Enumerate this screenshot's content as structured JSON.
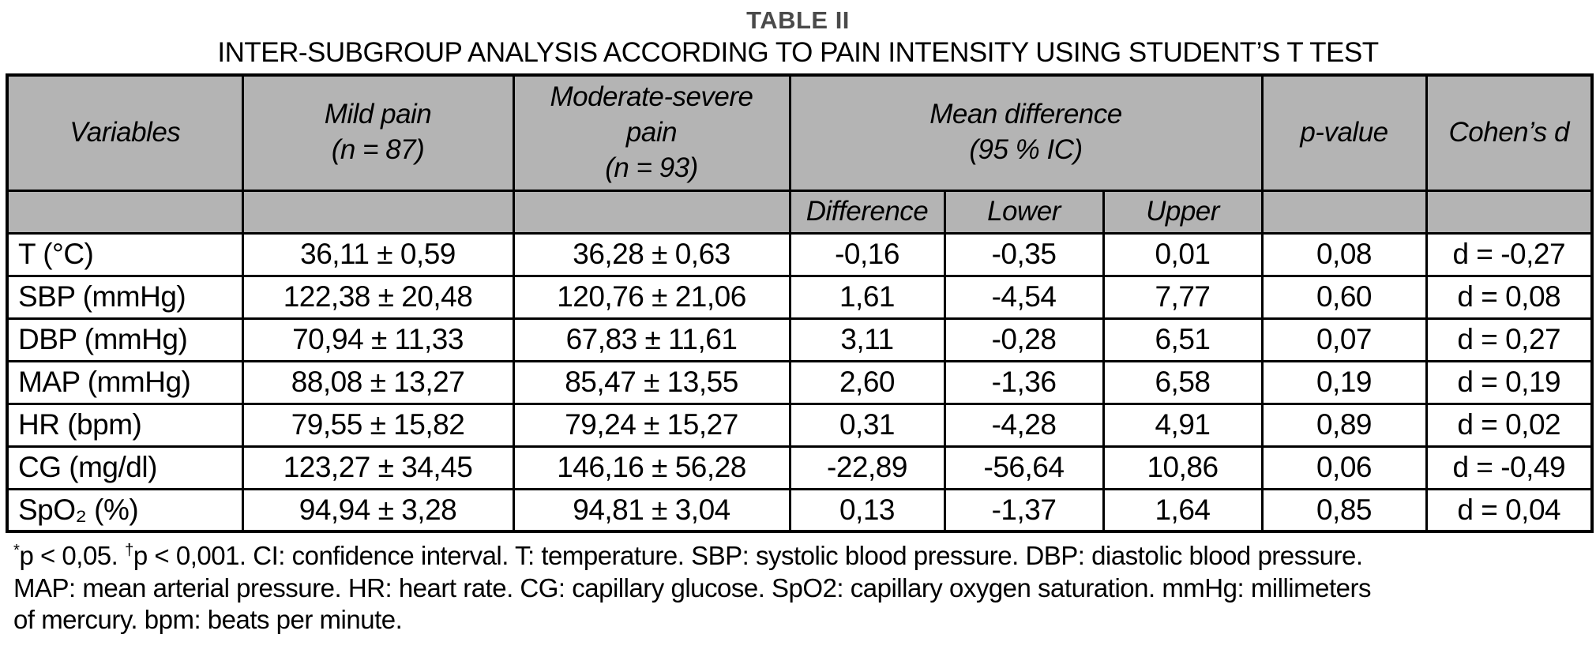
{
  "title": "TABLE II",
  "subtitle": "INTER-SUBGROUP ANALYSIS ACCORDING TO PAIN INTENSITY USING STUDENT’S T TEST",
  "table": {
    "header": {
      "variables": "Variables",
      "mild_pain": "Mild pain\n(n = 87)",
      "moderate_severe_pain": "Moderate-severe\npain\n(n = 93)",
      "mean_difference": "Mean difference\n(95 % IC)",
      "p_value": "p-value",
      "cohens_d": "Cohen’s d",
      "difference": "Difference",
      "lower": "Lower",
      "upper": "Upper"
    },
    "rows": [
      {
        "variable": "T (°C)",
        "mild": "36,11 ± 0,59",
        "moderate": "36,28 ± 0,63",
        "difference": "-0,16",
        "lower": "-0,35",
        "upper": "0,01",
        "p": "0,08",
        "d": "d = -0,27"
      },
      {
        "variable": "SBP (mmHg)",
        "mild": "122,38 ± 20,48",
        "moderate": "120,76 ± 21,06",
        "difference": "1,61",
        "lower": "-4,54",
        "upper": "7,77",
        "p": "0,60",
        "d": "d = 0,08"
      },
      {
        "variable": "DBP (mmHg)",
        "mild": "70,94 ± 11,33",
        "moderate": "67,83 ± 11,61",
        "difference": "3,11",
        "lower": "-0,28",
        "upper": "6,51",
        "p": "0,07",
        "d": "d = 0,27"
      },
      {
        "variable": "MAP (mmHg)",
        "mild": "88,08 ± 13,27",
        "moderate": "85,47 ± 13,55",
        "difference": "2,60",
        "lower": "-1,36",
        "upper": "6,58",
        "p": "0,19",
        "d": "d = 0,19"
      },
      {
        "variable": "HR (bpm)",
        "mild": "79,55 ± 15,82",
        "moderate": "79,24 ± 15,27",
        "difference": "0,31",
        "lower": "-4,28",
        "upper": "4,91",
        "p": "0,89",
        "d": "d = 0,02"
      },
      {
        "variable": "CG (mg/dl)",
        "mild": "123,27 ± 34,45",
        "moderate": "146,16 ± 56,28",
        "difference": "-22,89",
        "lower": "-56,64",
        "upper": "10,86",
        "p": "0,06",
        "d": "d = -0,49"
      },
      {
        "variable": "SpO₂ (%)",
        "mild": "94,94 ± 3,28",
        "moderate": "94,81 ± 3,04",
        "difference": "0,13",
        "lower": "-1,37",
        "upper": "1,64",
        "p": "0,85",
        "d": "d = 0,04"
      }
    ]
  },
  "footnote": {
    "lines": [
      {
        "parts": [
          {
            "sup": "*"
          },
          {
            "text": "p < 0,05. "
          },
          {
            "sup": "†"
          },
          {
            "text": "p < 0,001. CI: confidence interval. T: temperature. SBP: systolic blood pressure. DBP: diastolic blood pressure."
          }
        ]
      },
      {
        "parts": [
          {
            "text": "MAP: mean arterial pressure. HR: heart rate. CG: capillary glucose. SpO2: capillary oxygen saturation. mmHg: millimeters"
          }
        ]
      },
      {
        "parts": [
          {
            "text": "of mercury. bpm: beats per minute."
          }
        ]
      }
    ]
  },
  "colors": {
    "header_bg": "#b4b4b4",
    "border_color": "#000000",
    "title_color": "#4a4a4a",
    "text_color": "#000000"
  }
}
